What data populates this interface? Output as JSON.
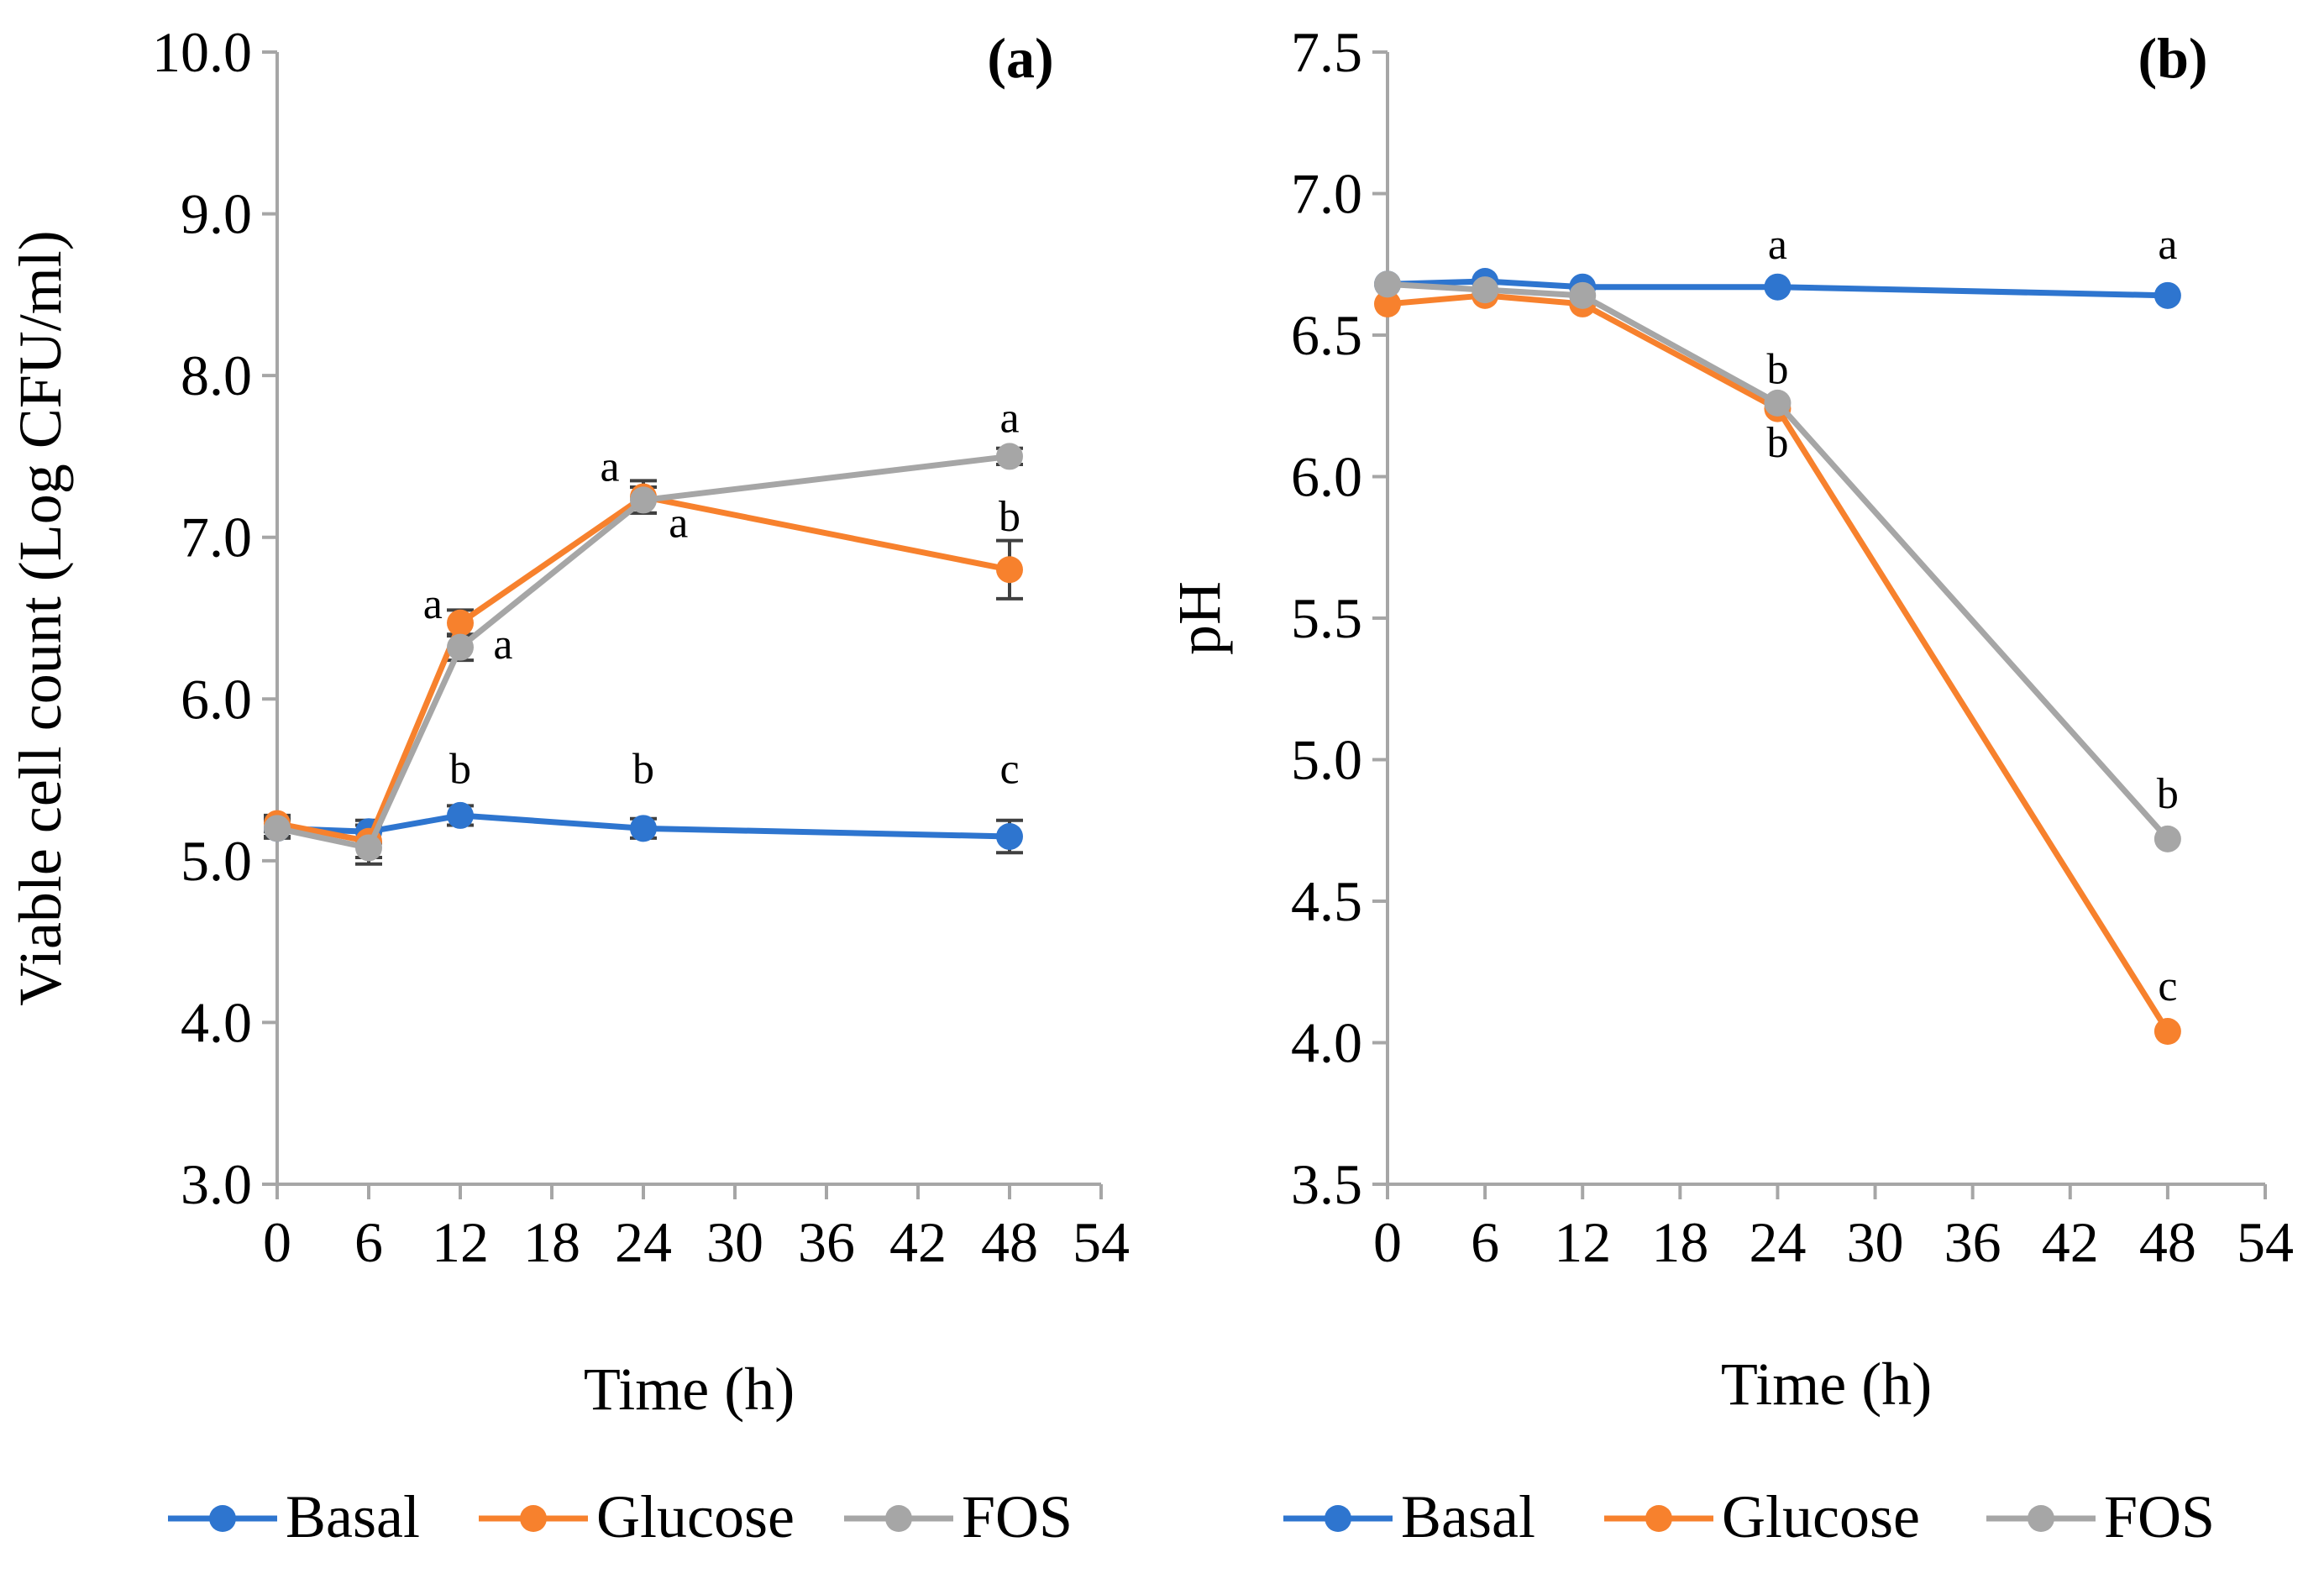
{
  "colors": {
    "Basal": "#2E75CF",
    "Glucose": "#F7812D",
    "FOS": "#A6A6A6",
    "axis": "#A6A6A6",
    "errorbar": "#404040"
  },
  "chart_data": [
    {
      "type": "line",
      "panel_label": "(a)",
      "xlabel": "Time (h)",
      "ylabel": "Viable cell count (Log CFU/ml)",
      "xlim": [
        0,
        54
      ],
      "ylim": [
        3.0,
        10.0
      ],
      "x_ticks": [
        "0",
        "6",
        "12",
        "18",
        "24",
        "30",
        "36",
        "42",
        "48",
        "54"
      ],
      "y_ticks": [
        "3.0",
        "4.0",
        "5.0",
        "6.0",
        "7.0",
        "8.0",
        "9.0",
        "10.0"
      ],
      "x": [
        0,
        6,
        12,
        24,
        48
      ],
      "series": [
        {
          "name": "Basal",
          "values": [
            5.2,
            5.18,
            5.28,
            5.2,
            5.15
          ],
          "errors": [
            0.05,
            0.07,
            0.06,
            0.06,
            0.1
          ]
        },
        {
          "name": "Glucose",
          "values": [
            5.23,
            5.12,
            6.47,
            7.25,
            6.8
          ],
          "errors": [
            0.05,
            0.1,
            0.08,
            0.1,
            0.18
          ]
        },
        {
          "name": "FOS",
          "values": [
            5.2,
            5.08,
            6.32,
            7.23,
            7.5
          ],
          "errors": [
            0.06,
            0.1,
            0.08,
            0.08,
            0.05
          ]
        }
      ],
      "annotations": [
        {
          "text": "a",
          "x": 10.2,
          "y": 6.5
        },
        {
          "text": "a",
          "x": 14.8,
          "y": 6.25
        },
        {
          "text": "b",
          "x": 12.0,
          "y": 5.48
        },
        {
          "text": "a",
          "x": 21.8,
          "y": 7.35
        },
        {
          "text": "a",
          "x": 26.3,
          "y": 7.0
        },
        {
          "text": "b",
          "x": 24.0,
          "y": 5.48
        },
        {
          "text": "a",
          "x": 48.0,
          "y": 7.65
        },
        {
          "text": "b",
          "x": 48.0,
          "y": 7.04
        },
        {
          "text": "c",
          "x": 48.0,
          "y": 5.48
        }
      ],
      "legend": {
        "position": "bottom",
        "entries": [
          "Basal",
          "Glucose",
          "FOS"
        ]
      }
    },
    {
      "type": "line",
      "panel_label": "(b)",
      "xlabel": "Time (h)",
      "ylabel": "pH",
      "xlim": [
        0,
        54
      ],
      "ylim": [
        3.5,
        7.5
      ],
      "x_ticks": [
        "0",
        "6",
        "12",
        "18",
        "24",
        "30",
        "36",
        "42",
        "48",
        "54"
      ],
      "y_ticks": [
        "3.5",
        "4.0",
        "4.5",
        "5.0",
        "5.5",
        "6.0",
        "6.5",
        "7.0",
        "7.5"
      ],
      "x": [
        0,
        6,
        12,
        24,
        48
      ],
      "series": [
        {
          "name": "Basal",
          "values": [
            6.68,
            6.69,
            6.67,
            6.67,
            6.64
          ]
        },
        {
          "name": "Glucose",
          "values": [
            6.61,
            6.64,
            6.61,
            6.24,
            4.04
          ]
        },
        {
          "name": "FOS",
          "values": [
            6.68,
            6.66,
            6.64,
            6.26,
            4.72
          ]
        }
      ],
      "annotations": [
        {
          "text": "a",
          "x": 24.0,
          "y": 6.77
        },
        {
          "text": "a",
          "x": 48.0,
          "y": 6.77
        },
        {
          "text": "b",
          "x": 24.0,
          "y": 6.33
        },
        {
          "text": "b",
          "x": 24.0,
          "y": 6.07
        },
        {
          "text": "b",
          "x": 48.0,
          "y": 4.83
        },
        {
          "text": "c",
          "x": 48.0,
          "y": 4.15
        }
      ],
      "legend": {
        "position": "bottom",
        "entries": [
          "Basal",
          "Glucose",
          "FOS"
        ]
      }
    }
  ]
}
